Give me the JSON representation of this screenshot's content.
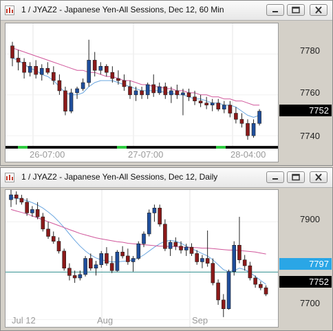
{
  "windows": [
    {
      "title": "1 / JYAZ2 - Japanese Yen-All Sessions, Dec 12, 60 Min",
      "y_ticks": [
        "7780",
        "7760",
        "7740"
      ],
      "last_price": "7752",
      "x_labels": [
        "26-07:00",
        "27-07:00",
        "28-04:00"
      ]
    },
    {
      "title": "1 / JYAZ2 - Japanese Yen-All Sessions, Dec 12, Daily",
      "y_ticks": [
        "7900",
        "7800",
        "7700"
      ],
      "reference_price": "7797",
      "last_price": "7752",
      "x_labels": [
        "Jul 12",
        "Aug",
        "Sep"
      ]
    }
  ],
  "colors": {
    "bull_candle": "#1f4e9c",
    "bear_candle": "#8b1a1a",
    "ma_fast": "#6aa6e0",
    "ma_slow": "#d0559a",
    "reference_line": "#2f8f8f",
    "reference_badge": "#2aa6e6",
    "last_badge": "#000000"
  },
  "icons": [
    "chart-app-icon",
    "minimize-icon",
    "restore-icon",
    "close-icon"
  ],
  "chart_data": [
    {
      "type": "candlestick",
      "title": "1 / JYAZ2 - Japanese Yen-All Sessions, Dec 12, 60 Min",
      "ylim": [
        7735,
        7795
      ],
      "y_ticks": [
        7780,
        7760,
        7740
      ],
      "x_ticks": [
        "26-07:00",
        "27-07:00",
        "28-04:00"
      ],
      "last": 7752,
      "candles": [
        {
          "o": 7784,
          "h": 7786,
          "l": 7774,
          "c": 7778
        },
        {
          "o": 7778,
          "h": 7782,
          "l": 7772,
          "c": 7776
        },
        {
          "o": 7776,
          "h": 7778,
          "l": 7768,
          "c": 7771
        },
        {
          "o": 7771,
          "h": 7776,
          "l": 7769,
          "c": 7774
        },
        {
          "o": 7774,
          "h": 7777,
          "l": 7768,
          "c": 7770
        },
        {
          "o": 7770,
          "h": 7775,
          "l": 7767,
          "c": 7773
        },
        {
          "o": 7773,
          "h": 7776,
          "l": 7770,
          "c": 7771
        },
        {
          "o": 7771,
          "h": 7774,
          "l": 7765,
          "c": 7767
        },
        {
          "o": 7767,
          "h": 7770,
          "l": 7760,
          "c": 7762
        },
        {
          "o": 7762,
          "h": 7764,
          "l": 7750,
          "c": 7752
        },
        {
          "o": 7752,
          "h": 7763,
          "l": 7751,
          "c": 7761
        },
        {
          "o": 7761,
          "h": 7764,
          "l": 7758,
          "c": 7763
        },
        {
          "o": 7763,
          "h": 7768,
          "l": 7762,
          "c": 7766
        },
        {
          "o": 7766,
          "h": 7787,
          "l": 7764,
          "c": 7777
        },
        {
          "o": 7777,
          "h": 7781,
          "l": 7769,
          "c": 7772
        },
        {
          "o": 7772,
          "h": 7776,
          "l": 7770,
          "c": 7774
        },
        {
          "o": 7774,
          "h": 7775,
          "l": 7769,
          "c": 7771
        },
        {
          "o": 7771,
          "h": 7774,
          "l": 7766,
          "c": 7768
        },
        {
          "o": 7768,
          "h": 7772,
          "l": 7765,
          "c": 7767
        },
        {
          "o": 7767,
          "h": 7770,
          "l": 7762,
          "c": 7764
        },
        {
          "o": 7764,
          "h": 7767,
          "l": 7758,
          "c": 7760
        },
        {
          "o": 7760,
          "h": 7764,
          "l": 7757,
          "c": 7762
        },
        {
          "o": 7762,
          "h": 7764,
          "l": 7758,
          "c": 7760
        },
        {
          "o": 7760,
          "h": 7766,
          "l": 7758,
          "c": 7765
        },
        {
          "o": 7765,
          "h": 7770,
          "l": 7759,
          "c": 7761
        },
        {
          "o": 7761,
          "h": 7766,
          "l": 7760,
          "c": 7764
        },
        {
          "o": 7764,
          "h": 7766,
          "l": 7758,
          "c": 7760
        },
        {
          "o": 7760,
          "h": 7764,
          "l": 7756,
          "c": 7762
        },
        {
          "o": 7762,
          "h": 7765,
          "l": 7758,
          "c": 7760
        },
        {
          "o": 7760,
          "h": 7763,
          "l": 7750,
          "c": 7761
        },
        {
          "o": 7761,
          "h": 7763,
          "l": 7757,
          "c": 7759
        },
        {
          "o": 7759,
          "h": 7762,
          "l": 7755,
          "c": 7757
        },
        {
          "o": 7757,
          "h": 7760,
          "l": 7754,
          "c": 7756
        },
        {
          "o": 7756,
          "h": 7759,
          "l": 7753,
          "c": 7755
        },
        {
          "o": 7755,
          "h": 7758,
          "l": 7752,
          "c": 7756
        },
        {
          "o": 7756,
          "h": 7758,
          "l": 7752,
          "c": 7753
        },
        {
          "o": 7753,
          "h": 7757,
          "l": 7751,
          "c": 7755
        },
        {
          "o": 7755,
          "h": 7757,
          "l": 7749,
          "c": 7751
        },
        {
          "o": 7751,
          "h": 7754,
          "l": 7746,
          "c": 7748
        },
        {
          "o": 7748,
          "h": 7751,
          "l": 7744,
          "c": 7746
        },
        {
          "o": 7746,
          "h": 7748,
          "l": 7738,
          "c": 7740
        },
        {
          "o": 7740,
          "h": 7748,
          "l": 7739,
          "c": 7746
        },
        {
          "o": 7746,
          "h": 7753,
          "l": 7745,
          "c": 7752
        }
      ],
      "series": [
        {
          "values": [
            7778,
            7777,
            7775,
            7773,
            7772,
            7770,
            7769,
            7767,
            7764,
            7761,
            7760,
            7760,
            7761,
            7764,
            7766,
            7767,
            7767,
            7767,
            7766,
            7765,
            7764,
            7763,
            7762,
            7762,
            7762,
            7762,
            7761,
            7761,
            7760,
            7760,
            7759,
            7758,
            7758,
            7757,
            7756,
            7756,
            7755,
            7755,
            7754,
            7752,
            7750,
            7749,
            7750
          ]
        },
        {
          "values": [
            7783,
            7782,
            7781,
            7780,
            7779,
            7778,
            7777,
            7776,
            7775,
            7774,
            7773,
            7772,
            7772,
            7771,
            7771,
            7770,
            7769,
            7769,
            7768,
            7767,
            7767,
            7766,
            7765,
            7765,
            7764,
            7764,
            7763,
            7763,
            7762,
            7762,
            7761,
            7761,
            7760,
            7760,
            7759,
            7759,
            7758,
            7758,
            7757,
            7757,
            7756,
            7755,
            7755
          ]
        }
      ],
      "reference": null
    },
    {
      "type": "candlestick",
      "title": "1 / JYAZ2 - Japanese Yen-All Sessions, Dec 12, Daily",
      "ylim": [
        7685,
        7965
      ],
      "y_ticks": [
        7900,
        7800,
        7700
      ],
      "x_ticks": [
        "Jul 12",
        "Aug",
        "Sep"
      ],
      "last": 7752,
      "reference": 7797,
      "candles": [
        {
          "o": 7945,
          "h": 7965,
          "l": 7930,
          "c": 7955
        },
        {
          "o": 7955,
          "h": 7962,
          "l": 7935,
          "c": 7948
        },
        {
          "o": 7948,
          "h": 7955,
          "l": 7935,
          "c": 7940
        },
        {
          "o": 7940,
          "h": 7948,
          "l": 7912,
          "c": 7918
        },
        {
          "o": 7918,
          "h": 7932,
          "l": 7910,
          "c": 7925
        },
        {
          "o": 7925,
          "h": 7940,
          "l": 7905,
          "c": 7910
        },
        {
          "o": 7910,
          "h": 7918,
          "l": 7880,
          "c": 7885
        },
        {
          "o": 7885,
          "h": 7900,
          "l": 7865,
          "c": 7870
        },
        {
          "o": 7870,
          "h": 7880,
          "l": 7855,
          "c": 7860
        },
        {
          "o": 7860,
          "h": 7868,
          "l": 7835,
          "c": 7840
        },
        {
          "o": 7840,
          "h": 7845,
          "l": 7800,
          "c": 7805
        },
        {
          "o": 7805,
          "h": 7815,
          "l": 7780,
          "c": 7790
        },
        {
          "o": 7790,
          "h": 7800,
          "l": 7775,
          "c": 7785
        },
        {
          "o": 7785,
          "h": 7800,
          "l": 7780,
          "c": 7792
        },
        {
          "o": 7792,
          "h": 7830,
          "l": 7788,
          "c": 7825
        },
        {
          "o": 7825,
          "h": 7835,
          "l": 7800,
          "c": 7805
        },
        {
          "o": 7805,
          "h": 7820,
          "l": 7790,
          "c": 7812
        },
        {
          "o": 7812,
          "h": 7840,
          "l": 7806,
          "c": 7835
        },
        {
          "o": 7835,
          "h": 7848,
          "l": 7810,
          "c": 7815
        },
        {
          "o": 7815,
          "h": 7830,
          "l": 7795,
          "c": 7800
        },
        {
          "o": 7800,
          "h": 7842,
          "l": 7798,
          "c": 7838
        },
        {
          "o": 7838,
          "h": 7850,
          "l": 7825,
          "c": 7830
        },
        {
          "o": 7830,
          "h": 7845,
          "l": 7812,
          "c": 7818
        },
        {
          "o": 7818,
          "h": 7830,
          "l": 7798,
          "c": 7825
        },
        {
          "o": 7825,
          "h": 7860,
          "l": 7822,
          "c": 7855
        },
        {
          "o": 7855,
          "h": 7880,
          "l": 7848,
          "c": 7875
        },
        {
          "o": 7875,
          "h": 7925,
          "l": 7870,
          "c": 7918
        },
        {
          "o": 7918,
          "h": 7935,
          "l": 7900,
          "c": 7928
        },
        {
          "o": 7928,
          "h": 7935,
          "l": 7890,
          "c": 7895
        },
        {
          "o": 7895,
          "h": 7905,
          "l": 7840,
          "c": 7845
        },
        {
          "o": 7845,
          "h": 7862,
          "l": 7830,
          "c": 7858
        },
        {
          "o": 7858,
          "h": 7868,
          "l": 7842,
          "c": 7850
        },
        {
          "o": 7850,
          "h": 7860,
          "l": 7835,
          "c": 7842
        },
        {
          "o": 7842,
          "h": 7855,
          "l": 7830,
          "c": 7848
        },
        {
          "o": 7848,
          "h": 7856,
          "l": 7830,
          "c": 7835
        },
        {
          "o": 7835,
          "h": 7842,
          "l": 7812,
          "c": 7818
        },
        {
          "o": 7818,
          "h": 7832,
          "l": 7805,
          "c": 7825
        },
        {
          "o": 7825,
          "h": 7882,
          "l": 7808,
          "c": 7815
        },
        {
          "o": 7815,
          "h": 7825,
          "l": 7770,
          "c": 7775
        },
        {
          "o": 7775,
          "h": 7782,
          "l": 7730,
          "c": 7740
        },
        {
          "o": 7740,
          "h": 7752,
          "l": 7705,
          "c": 7722
        },
        {
          "o": 7722,
          "h": 7802,
          "l": 7720,
          "c": 7798
        },
        {
          "o": 7798,
          "h": 7860,
          "l": 7790,
          "c": 7852
        },
        {
          "o": 7852,
          "h": 7910,
          "l": 7815,
          "c": 7822
        },
        {
          "o": 7822,
          "h": 7832,
          "l": 7800,
          "c": 7810
        },
        {
          "o": 7810,
          "h": 7818,
          "l": 7780,
          "c": 7785
        },
        {
          "o": 7785,
          "h": 7790,
          "l": 7765,
          "c": 7772
        },
        {
          "o": 7772,
          "h": 7778,
          "l": 7760,
          "c": 7765
        },
        {
          "o": 7765,
          "h": 7770,
          "l": 7748,
          "c": 7752
        }
      ],
      "series": [
        {
          "values": [
            7950,
            7948,
            7946,
            7943,
            7939,
            7934,
            7928,
            7920,
            7911,
            7900,
            7888,
            7875,
            7862,
            7850,
            7840,
            7832,
            7826,
            7822,
            7820,
            7818,
            7818,
            7819,
            7820,
            7822,
            7826,
            7832,
            7840,
            7848,
            7855,
            7860,
            7862,
            7860,
            7856,
            7850,
            7845,
            7840,
            7835,
            7830,
            7822,
            7812,
            7802,
            7798,
            7800,
            7805,
            7802,
            7796,
            7788,
            7780,
            7772
          ]
        },
        {
          "values": [
            7925,
            7922,
            7919,
            7916,
            7912,
            7908,
            7904,
            7900,
            7896,
            7892,
            7888,
            7884,
            7880,
            7876,
            7873,
            7870,
            7867,
            7865,
            7863,
            7861,
            7859,
            7858,
            7856,
            7855,
            7854,
            7853,
            7852,
            7851,
            7850,
            7850,
            7849,
            7849,
            7848,
            7848,
            7847,
            7847,
            7846,
            7846,
            7845,
            7844,
            7843,
            7842,
            7842,
            7841,
            7840,
            7839,
            7838,
            7836,
            7834
          ]
        }
      ]
    }
  ]
}
